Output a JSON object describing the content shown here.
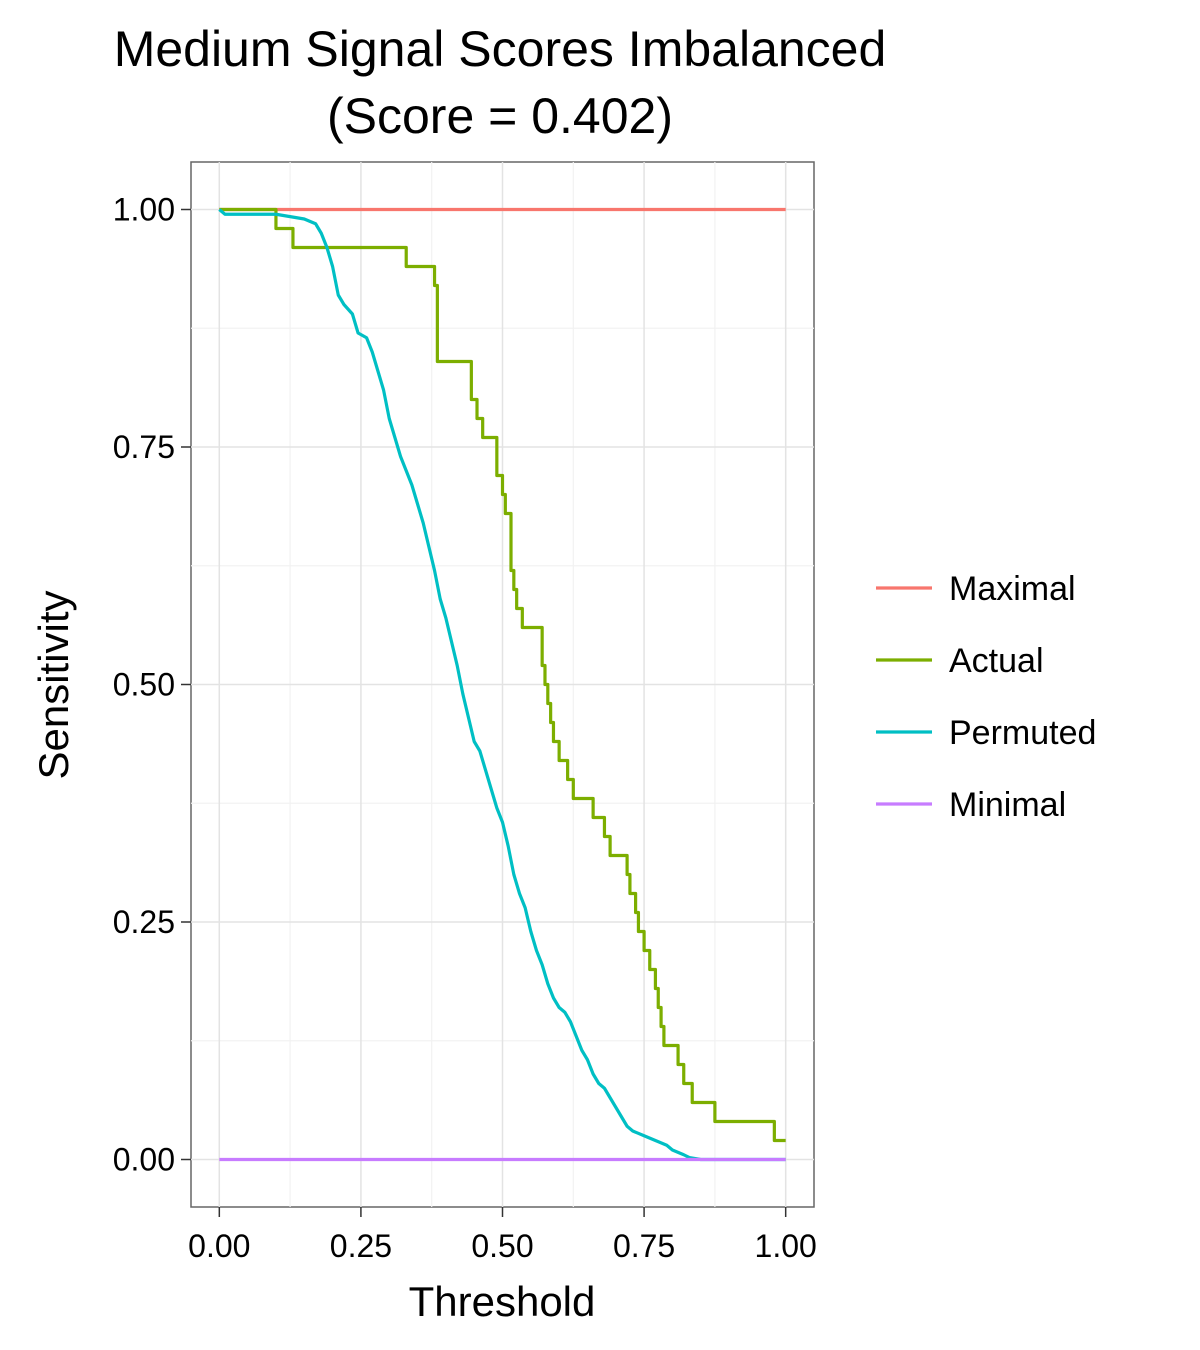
{
  "chart_data": {
    "type": "line",
    "title": "Medium Signal Scores Imbalanced",
    "subtitle": "(Score = 0.402)",
    "xlabel": "Threshold",
    "ylabel": "Sensitivity",
    "xlim": [
      -0.05,
      1.05
    ],
    "ylim": [
      -0.05,
      1.05
    ],
    "x_ticks": [
      0,
      0.25,
      0.5,
      0.75,
      1
    ],
    "x_tick_labels": [
      "0.00",
      "0.25",
      "0.50",
      "0.75",
      "1.00"
    ],
    "y_ticks": [
      0,
      0.25,
      0.5,
      0.75,
      1
    ],
    "y_tick_labels": [
      "0.00",
      "0.25",
      "0.50",
      "0.75",
      "1.00"
    ],
    "grid": true,
    "legend_position": "right",
    "series": [
      {
        "name": "Maximal",
        "color": "#F8766D",
        "step": false,
        "points": [
          [
            0,
            1
          ],
          [
            1,
            1
          ]
        ]
      },
      {
        "name": "Actual",
        "color": "#7CAE00",
        "step": true,
        "points": [
          [
            0,
            1.0
          ],
          [
            0.1,
            0.98
          ],
          [
            0.13,
            0.96
          ],
          [
            0.33,
            0.94
          ],
          [
            0.38,
            0.92
          ],
          [
            0.385,
            0.84
          ],
          [
            0.445,
            0.8
          ],
          [
            0.455,
            0.78
          ],
          [
            0.465,
            0.76
          ],
          [
            0.49,
            0.72
          ],
          [
            0.5,
            0.7
          ],
          [
            0.505,
            0.68
          ],
          [
            0.515,
            0.62
          ],
          [
            0.52,
            0.6
          ],
          [
            0.525,
            0.58
          ],
          [
            0.535,
            0.56
          ],
          [
            0.57,
            0.52
          ],
          [
            0.575,
            0.5
          ],
          [
            0.58,
            0.48
          ],
          [
            0.585,
            0.46
          ],
          [
            0.59,
            0.44
          ],
          [
            0.6,
            0.42
          ],
          [
            0.615,
            0.4
          ],
          [
            0.625,
            0.38
          ],
          [
            0.66,
            0.36
          ],
          [
            0.68,
            0.34
          ],
          [
            0.69,
            0.32
          ],
          [
            0.72,
            0.3
          ],
          [
            0.725,
            0.28
          ],
          [
            0.735,
            0.26
          ],
          [
            0.74,
            0.24
          ],
          [
            0.75,
            0.22
          ],
          [
            0.76,
            0.2
          ],
          [
            0.77,
            0.18
          ],
          [
            0.775,
            0.16
          ],
          [
            0.78,
            0.14
          ],
          [
            0.785,
            0.12
          ],
          [
            0.81,
            0.1
          ],
          [
            0.82,
            0.08
          ],
          [
            0.835,
            0.06
          ],
          [
            0.875,
            0.04
          ],
          [
            0.98,
            0.02
          ],
          [
            1.0,
            0.02
          ]
        ]
      },
      {
        "name": "Permuted",
        "color": "#00BFC4",
        "step": false,
        "points": [
          [
            0,
            1.0
          ],
          [
            0.01,
            0.995
          ],
          [
            0.1,
            0.995
          ],
          [
            0.15,
            0.99
          ],
          [
            0.17,
            0.985
          ],
          [
            0.18,
            0.975
          ],
          [
            0.19,
            0.96
          ],
          [
            0.2,
            0.94
          ],
          [
            0.21,
            0.91
          ],
          [
            0.22,
            0.9
          ],
          [
            0.235,
            0.89
          ],
          [
            0.245,
            0.87
          ],
          [
            0.26,
            0.865
          ],
          [
            0.27,
            0.85
          ],
          [
            0.28,
            0.83
          ],
          [
            0.29,
            0.81
          ],
          [
            0.3,
            0.78
          ],
          [
            0.31,
            0.76
          ],
          [
            0.32,
            0.74
          ],
          [
            0.33,
            0.725
          ],
          [
            0.34,
            0.71
          ],
          [
            0.35,
            0.69
          ],
          [
            0.36,
            0.67
          ],
          [
            0.37,
            0.645
          ],
          [
            0.38,
            0.62
          ],
          [
            0.39,
            0.59
          ],
          [
            0.4,
            0.57
          ],
          [
            0.41,
            0.545
          ],
          [
            0.42,
            0.52
          ],
          [
            0.43,
            0.49
          ],
          [
            0.44,
            0.465
          ],
          [
            0.45,
            0.44
          ],
          [
            0.46,
            0.43
          ],
          [
            0.47,
            0.41
          ],
          [
            0.48,
            0.39
          ],
          [
            0.49,
            0.37
          ],
          [
            0.5,
            0.355
          ],
          [
            0.51,
            0.33
          ],
          [
            0.52,
            0.3
          ],
          [
            0.53,
            0.28
          ],
          [
            0.54,
            0.265
          ],
          [
            0.55,
            0.24
          ],
          [
            0.56,
            0.22
          ],
          [
            0.57,
            0.205
          ],
          [
            0.58,
            0.185
          ],
          [
            0.59,
            0.17
          ],
          [
            0.6,
            0.16
          ],
          [
            0.61,
            0.155
          ],
          [
            0.62,
            0.145
          ],
          [
            0.63,
            0.13
          ],
          [
            0.64,
            0.115
          ],
          [
            0.65,
            0.105
          ],
          [
            0.66,
            0.09
          ],
          [
            0.67,
            0.08
          ],
          [
            0.68,
            0.075
          ],
          [
            0.69,
            0.065
          ],
          [
            0.7,
            0.055
          ],
          [
            0.71,
            0.045
          ],
          [
            0.72,
            0.035
          ],
          [
            0.73,
            0.03
          ],
          [
            0.75,
            0.025
          ],
          [
            0.77,
            0.02
          ],
          [
            0.79,
            0.015
          ],
          [
            0.8,
            0.01
          ],
          [
            0.82,
            0.005
          ],
          [
            0.83,
            0.002
          ],
          [
            0.85,
            0.0
          ],
          [
            1.0,
            0.0
          ]
        ]
      },
      {
        "name": "Minimal",
        "color": "#C77CFF",
        "step": false,
        "points": [
          [
            0,
            0
          ],
          [
            1,
            0
          ]
        ]
      }
    ]
  }
}
